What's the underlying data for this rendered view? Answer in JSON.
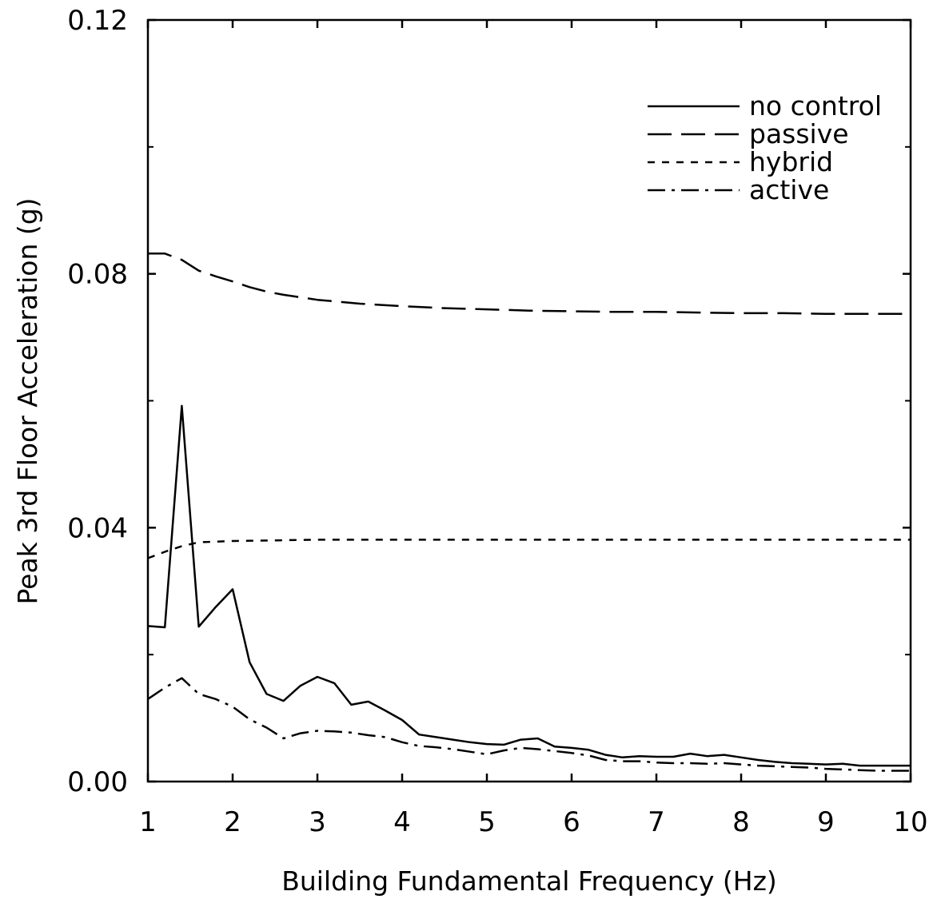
{
  "chart_data": {
    "type": "line",
    "title": "",
    "xlabel": "Building Fundamental Frequency (Hz)",
    "ylabel": "Peak 3rd Floor Acceleration (g)",
    "xlim": [
      1,
      10
    ],
    "ylim": [
      0,
      0.12
    ],
    "x_ticks": [
      1,
      2,
      3,
      4,
      5,
      6,
      7,
      8,
      9,
      10
    ],
    "x_tick_labels": [
      "1",
      "2",
      "3",
      "4",
      "5",
      "6",
      "7",
      "8",
      "9",
      "10"
    ],
    "y_ticks": [
      0,
      0.04,
      0.08,
      0.12
    ],
    "y_tick_labels": [
      "0.00",
      "0.04",
      "0.08",
      "0.12"
    ],
    "y_minor_ticks": [
      0.02,
      0.06,
      0.1
    ],
    "grid": false,
    "legend_position": "top-right",
    "series": [
      {
        "name": "no control",
        "style": "solid",
        "color": "#000000",
        "x": [
          1,
          1.2,
          1.4,
          1.6,
          1.8,
          2,
          2.2,
          2.4,
          2.6,
          2.8,
          3,
          3.2,
          3.4,
          3.6,
          3.8,
          4,
          4.2,
          4.4,
          4.6,
          4.8,
          5,
          5.2,
          5.4,
          5.6,
          5.8,
          6,
          6.2,
          6.4,
          6.6,
          6.8,
          7,
          7.2,
          7.4,
          7.6,
          7.8,
          8,
          8.2,
          8.4,
          8.6,
          8.8,
          9,
          9.2,
          9.4,
          9.6,
          9.8,
          10
        ],
        "y": [
          0.0245,
          0.0243,
          0.0592,
          0.0244,
          0.0275,
          0.0303,
          0.0188,
          0.0138,
          0.0127,
          0.0151,
          0.0165,
          0.0155,
          0.0121,
          0.0126,
          0.0112,
          0.0097,
          0.0074,
          0.007,
          0.0066,
          0.0062,
          0.0059,
          0.0058,
          0.0066,
          0.0068,
          0.0055,
          0.0053,
          0.005,
          0.0042,
          0.0038,
          0.004,
          0.0039,
          0.0039,
          0.0044,
          0.004,
          0.0042,
          0.0038,
          0.0034,
          0.0031,
          0.0029,
          0.0028,
          0.0027,
          0.0028,
          0.0025,
          0.0025,
          0.0025,
          0.0025
        ]
      },
      {
        "name": "passive",
        "style": "long-dash",
        "color": "#000000",
        "x": [
          1,
          1.2,
          1.4,
          1.6,
          1.8,
          2,
          2.2,
          2.4,
          2.6,
          3,
          3.5,
          4,
          4.5,
          5,
          5.5,
          6,
          6.5,
          7,
          7.5,
          8,
          8.5,
          9,
          9.5,
          10
        ],
        "y": [
          0.0832,
          0.0832,
          0.0822,
          0.0805,
          0.0796,
          0.0788,
          0.0779,
          0.0772,
          0.0767,
          0.0759,
          0.0753,
          0.0749,
          0.0746,
          0.0744,
          0.0742,
          0.0741,
          0.074,
          0.074,
          0.0739,
          0.0738,
          0.0738,
          0.0737,
          0.0737,
          0.0737
        ]
      },
      {
        "name": "hybrid",
        "style": "short-dash",
        "color": "#000000",
        "x": [
          1,
          1.2,
          1.4,
          1.6,
          1.8,
          2,
          2.5,
          3,
          4,
          5,
          6,
          7,
          8,
          9,
          10
        ],
        "y": [
          0.0352,
          0.0362,
          0.0371,
          0.0377,
          0.0378,
          0.0379,
          0.038,
          0.0381,
          0.0381,
          0.0381,
          0.0381,
          0.0381,
          0.0381,
          0.0381,
          0.0381
        ]
      },
      {
        "name": "active",
        "style": "dash-dot",
        "color": "#000000",
        "x": [
          1,
          1.2,
          1.4,
          1.6,
          1.8,
          2,
          2.2,
          2.4,
          2.6,
          2.8,
          3,
          3.2,
          3.4,
          3.6,
          3.8,
          4,
          4.2,
          4.4,
          4.6,
          4.8,
          5,
          5.2,
          5.4,
          5.6,
          5.8,
          6,
          6.2,
          6.4,
          6.6,
          6.8,
          7,
          7.2,
          7.4,
          7.6,
          7.8,
          8,
          8.2,
          8.4,
          8.6,
          8.8,
          9,
          9.2,
          9.4,
          9.6,
          9.8,
          10
        ],
        "y": [
          0.013,
          0.0148,
          0.0163,
          0.0138,
          0.013,
          0.0118,
          0.0098,
          0.0085,
          0.0068,
          0.0076,
          0.008,
          0.0079,
          0.0077,
          0.0073,
          0.007,
          0.0062,
          0.0056,
          0.0054,
          0.0051,
          0.0047,
          0.0043,
          0.0049,
          0.0053,
          0.0051,
          0.0048,
          0.0045,
          0.0041,
          0.0034,
          0.0032,
          0.0032,
          0.003,
          0.0029,
          0.0029,
          0.0028,
          0.0029,
          0.0027,
          0.0025,
          0.0024,
          0.0023,
          0.0022,
          0.002,
          0.0019,
          0.0018,
          0.0017,
          0.0017,
          0.0017
        ]
      }
    ]
  }
}
